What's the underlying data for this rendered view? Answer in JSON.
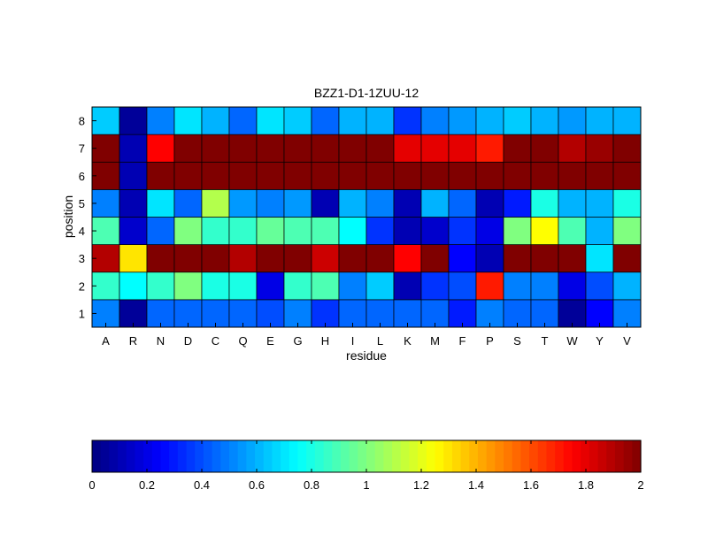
{
  "chart_data": {
    "type": "heatmap",
    "title": "BZZ1-D1-1ZUU-12",
    "xlabel": "residue",
    "ylabel": "position",
    "x_categories": [
      "A",
      "R",
      "N",
      "D",
      "C",
      "Q",
      "E",
      "G",
      "H",
      "I",
      "L",
      "K",
      "M",
      "F",
      "P",
      "S",
      "T",
      "W",
      "Y",
      "V"
    ],
    "y_categories": [
      "1",
      "2",
      "3",
      "4",
      "5",
      "6",
      "7",
      "8"
    ],
    "colormap": "jet",
    "value_range": [
      0,
      2
    ],
    "values": [
      [
        0.5,
        0.05,
        0.45,
        0.45,
        0.45,
        0.45,
        0.4,
        0.5,
        0.35,
        0.45,
        0.45,
        0.45,
        0.45,
        0.3,
        0.5,
        0.45,
        0.45,
        0.05,
        0.25,
        0.5
      ],
      [
        0.85,
        0.75,
        0.85,
        1.0,
        0.8,
        0.8,
        0.2,
        0.85,
        0.9,
        0.5,
        0.65,
        0.1,
        0.35,
        0.4,
        1.7,
        0.5,
        0.5,
        0.2,
        0.4,
        0.6
      ],
      [
        1.9,
        1.3,
        2.0,
        2.0,
        2.0,
        1.9,
        2.0,
        2.0,
        1.85,
        2.0,
        2.0,
        1.75,
        2.0,
        0.25,
        0.1,
        2.0,
        2.0,
        2.0,
        0.7,
        2.0
      ],
      [
        0.9,
        0.15,
        0.45,
        1.0,
        0.85,
        0.85,
        0.95,
        0.9,
        0.9,
        0.75,
        0.35,
        0.1,
        0.15,
        0.35,
        0.2,
        1.0,
        1.25,
        0.9,
        0.6,
        1.0
      ],
      [
        0.5,
        0.1,
        0.7,
        0.45,
        1.1,
        0.55,
        0.5,
        0.55,
        0.1,
        0.6,
        0.5,
        0.1,
        0.6,
        0.45,
        0.1,
        0.3,
        0.8,
        0.6,
        0.6,
        0.8
      ],
      [
        2.0,
        0.1,
        2.0,
        2.0,
        2.0,
        2.0,
        2.0,
        2.0,
        2.0,
        2.0,
        2.0,
        2.0,
        2.0,
        2.0,
        2.0,
        2.0,
        2.0,
        2.0,
        2.0,
        2.0
      ],
      [
        2.0,
        0.1,
        1.75,
        2.0,
        2.0,
        2.0,
        2.0,
        2.0,
        2.0,
        2.0,
        2.0,
        1.8,
        1.8,
        1.8,
        1.7,
        2.0,
        2.0,
        1.9,
        1.95,
        2.0
      ],
      [
        0.65,
        0.05,
        0.5,
        0.7,
        0.6,
        0.45,
        0.7,
        0.65,
        0.45,
        0.6,
        0.6,
        0.35,
        0.5,
        0.55,
        0.6,
        0.65,
        0.6,
        0.55,
        0.6,
        0.6
      ]
    ],
    "colorbar": {
      "ticks": [
        0,
        0.2,
        0.4,
        0.6,
        0.8,
        1,
        1.2,
        1.4,
        1.6,
        1.8,
        2
      ],
      "tick_labels": [
        "0",
        "0.2",
        "0.4",
        "0.6",
        "0.8",
        "1",
        "1.2",
        "1.4",
        "1.6",
        "1.8",
        "2"
      ]
    },
    "grid": false,
    "legend": "none"
  }
}
